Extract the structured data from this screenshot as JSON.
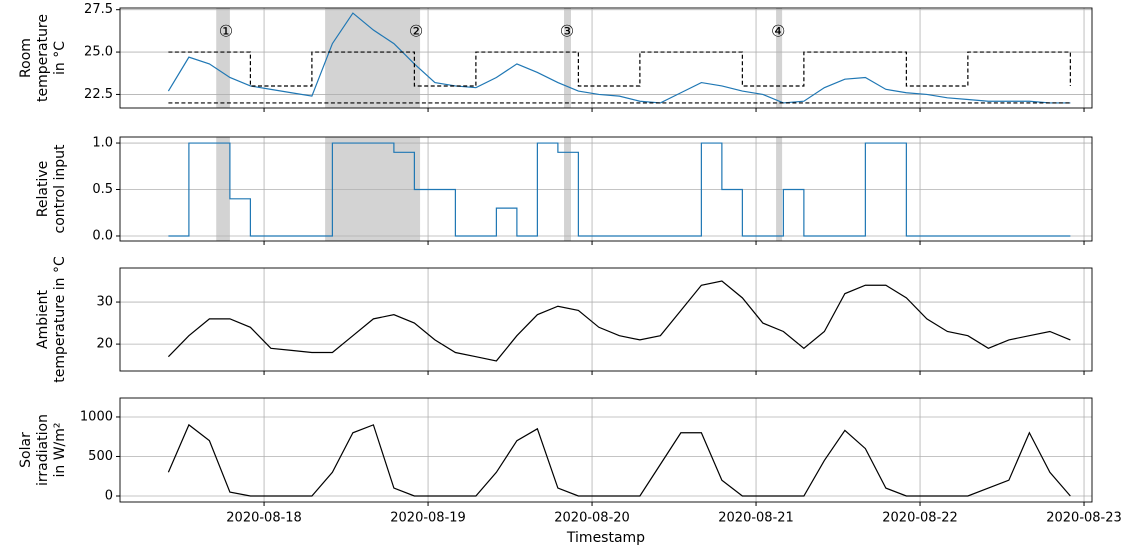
{
  "chart_data": [
    {
      "type": "line",
      "ylabel": [
        "Room",
        "temperature",
        "in °C"
      ],
      "x": [
        "2020-08-17T10:00",
        "2020-08-17T13:00",
        "2020-08-17T16:00",
        "2020-08-17T19:00",
        "2020-08-17T22:00",
        "2020-08-18T01:00",
        "2020-08-18T04:00",
        "2020-08-18T07:00",
        "2020-08-18T10:00",
        "2020-08-18T13:00",
        "2020-08-18T16:00",
        "2020-08-18T19:00",
        "2020-08-18T22:00",
        "2020-08-19T01:00",
        "2020-08-19T04:00",
        "2020-08-19T07:00",
        "2020-08-19T10:00",
        "2020-08-19T13:00",
        "2020-08-19T16:00",
        "2020-08-19T19:00",
        "2020-08-19T22:00",
        "2020-08-20T01:00",
        "2020-08-20T04:00",
        "2020-08-20T07:00",
        "2020-08-20T10:00",
        "2020-08-20T13:00",
        "2020-08-20T16:00",
        "2020-08-20T19:00",
        "2020-08-20T22:00",
        "2020-08-21T01:00",
        "2020-08-21T04:00",
        "2020-08-21T07:00",
        "2020-08-21T10:00",
        "2020-08-21T13:00",
        "2020-08-21T16:00",
        "2020-08-21T19:00",
        "2020-08-21T22:00",
        "2020-08-22T01:00",
        "2020-08-22T04:00",
        "2020-08-22T07:00",
        "2020-08-22T10:00",
        "2020-08-22T13:00",
        "2020-08-22T16:00",
        "2020-08-22T19:00",
        "2020-08-22T22:00"
      ],
      "series": [
        {
          "color": "#1f77b4",
          "values": [
            22.7,
            24.7,
            24.3,
            23.5,
            23.0,
            22.8,
            22.6,
            22.4,
            25.5,
            27.3,
            26.3,
            25.5,
            24.3,
            23.2,
            23.0,
            22.9,
            23.5,
            24.3,
            23.8,
            23.2,
            22.7,
            22.5,
            22.4,
            22.1,
            22.0,
            22.6,
            23.2,
            23.0,
            22.7,
            22.5,
            22.0,
            22.1,
            22.9,
            23.4,
            23.5,
            22.8,
            22.6,
            22.5,
            22.3,
            22.2,
            22.1,
            22.1,
            22.1,
            22.0,
            22.0
          ]
        },
        {
          "color": "#000000",
          "dashed": true,
          "step": true,
          "values": [
            25,
            25,
            25,
            25,
            23,
            23,
            23,
            25,
            25,
            25,
            25,
            25,
            23,
            23,
            23,
            25,
            25,
            25,
            25,
            25,
            23,
            23,
            23,
            25,
            25,
            25,
            25,
            25,
            23,
            23,
            23,
            25,
            25,
            25,
            25,
            25,
            23,
            23,
            23,
            25,
            25,
            25,
            25,
            25,
            23
          ]
        },
        {
          "color": "#000000",
          "dashed": true,
          "step": true,
          "values": [
            22,
            22,
            22,
            22,
            22,
            22,
            22,
            22,
            22,
            22,
            22,
            22,
            22,
            22,
            22,
            22,
            22,
            22,
            22,
            22,
            22,
            22,
            22,
            22,
            22,
            22,
            22,
            22,
            22,
            22,
            22,
            22,
            22,
            22,
            22,
            22,
            22,
            22,
            22,
            22,
            22,
            22,
            22,
            22,
            22
          ]
        }
      ],
      "spans": [
        {
          "x0": "2020-08-17T17:00",
          "x1": "2020-08-17T19:00",
          "label": "①"
        },
        {
          "x0": "2020-08-18T08:56",
          "x1": "2020-08-18T22:50",
          "label": "②"
        },
        {
          "x0": "2020-08-19T19:54",
          "x1": "2020-08-19T20:55",
          "label": "③"
        },
        {
          "x0": "2020-08-21T02:56",
          "x1": "2020-08-21T03:49",
          "label": "④"
        }
      ],
      "xlim": [
        "2020-08-17T02:55",
        "2020-08-23T01:10"
      ],
      "xticks": [
        "2020-08-18",
        "2020-08-19",
        "2020-08-20",
        "2020-08-21",
        "2020-08-22",
        "2020-08-23"
      ],
      "ylim": [
        21.7,
        27.6
      ],
      "yticks": [
        22.5,
        {
          "value": 25,
          "label": "25.0"
        },
        27.5
      ],
      "grid": true
    },
    {
      "type": "line",
      "ylabel": [
        "Relative",
        "control input"
      ],
      "x": [
        "2020-08-17T10:00",
        "2020-08-17T13:00",
        "2020-08-17T16:00",
        "2020-08-17T19:00",
        "2020-08-17T22:00",
        "2020-08-18T01:00",
        "2020-08-18T04:00",
        "2020-08-18T07:00",
        "2020-08-18T10:00",
        "2020-08-18T13:00",
        "2020-08-18T16:00",
        "2020-08-18T19:00",
        "2020-08-18T22:00",
        "2020-08-19T01:00",
        "2020-08-19T04:00",
        "2020-08-19T07:00",
        "2020-08-19T10:00",
        "2020-08-19T13:00",
        "2020-08-19T16:00",
        "2020-08-19T19:00",
        "2020-08-19T22:00",
        "2020-08-20T01:00",
        "2020-08-20T04:00",
        "2020-08-20T07:00",
        "2020-08-20T10:00",
        "2020-08-20T13:00",
        "2020-08-20T16:00",
        "2020-08-20T19:00",
        "2020-08-20T22:00",
        "2020-08-21T01:00",
        "2020-08-21T04:00",
        "2020-08-21T07:00",
        "2020-08-21T10:00",
        "2020-08-21T13:00",
        "2020-08-21T16:00",
        "2020-08-21T19:00",
        "2020-08-21T22:00",
        "2020-08-22T01:00",
        "2020-08-22T04:00",
        "2020-08-22T07:00",
        "2020-08-22T10:00",
        "2020-08-22T13:00",
        "2020-08-22T16:00",
        "2020-08-22T19:00",
        "2020-08-22T22:00"
      ],
      "series": [
        {
          "color": "#1f77b4",
          "step": true,
          "values": [
            0,
            1,
            1,
            0.4,
            0,
            0,
            0,
            0,
            1,
            1,
            1,
            0.9,
            0.5,
            0.5,
            0,
            0,
            0.3,
            0,
            1,
            0.9,
            0,
            0,
            0,
            0,
            0,
            0,
            1,
            0.5,
            0,
            0,
            0.5,
            0,
            0,
            0,
            1,
            1,
            0,
            0,
            0,
            0,
            0,
            0,
            0,
            0,
            0
          ]
        }
      ],
      "spans": [
        {
          "x0": "2020-08-17T17:00",
          "x1": "2020-08-17T19:00"
        },
        {
          "x0": "2020-08-18T08:56",
          "x1": "2020-08-18T22:50"
        },
        {
          "x0": "2020-08-19T19:54",
          "x1": "2020-08-19T20:55"
        },
        {
          "x0": "2020-08-21T02:56",
          "x1": "2020-08-21T03:49"
        }
      ],
      "xlim": [
        "2020-08-17T02:55",
        "2020-08-23T01:10"
      ],
      "xticks": [
        "2020-08-18",
        "2020-08-19",
        "2020-08-20",
        "2020-08-21",
        "2020-08-22",
        "2020-08-23"
      ],
      "ylim": [
        -0.054,
        1.065
      ],
      "yticks": [
        {
          "value": 0,
          "label": "0.0"
        },
        0.5,
        {
          "value": 1,
          "label": "1.0"
        }
      ],
      "grid": true
    },
    {
      "type": "line",
      "ylabel": [
        "Ambient",
        "temperature in °C"
      ],
      "x": [
        "2020-08-17T10:00",
        "2020-08-17T13:00",
        "2020-08-17T16:00",
        "2020-08-17T19:00",
        "2020-08-17T22:00",
        "2020-08-18T01:00",
        "2020-08-18T04:00",
        "2020-08-18T07:00",
        "2020-08-18T10:00",
        "2020-08-18T13:00",
        "2020-08-18T16:00",
        "2020-08-18T19:00",
        "2020-08-18T22:00",
        "2020-08-19T01:00",
        "2020-08-19T04:00",
        "2020-08-19T07:00",
        "2020-08-19T10:00",
        "2020-08-19T13:00",
        "2020-08-19T16:00",
        "2020-08-19T19:00",
        "2020-08-19T22:00",
        "2020-08-20T01:00",
        "2020-08-20T04:00",
        "2020-08-20T07:00",
        "2020-08-20T10:00",
        "2020-08-20T13:00",
        "2020-08-20T16:00",
        "2020-08-20T19:00",
        "2020-08-20T22:00",
        "2020-08-21T01:00",
        "2020-08-21T04:00",
        "2020-08-21T07:00",
        "2020-08-21T10:00",
        "2020-08-21T13:00",
        "2020-08-21T16:00",
        "2020-08-21T19:00",
        "2020-08-21T22:00",
        "2020-08-22T01:00",
        "2020-08-22T04:00",
        "2020-08-22T07:00",
        "2020-08-22T10:00",
        "2020-08-22T13:00",
        "2020-08-22T16:00",
        "2020-08-22T19:00",
        "2020-08-22T22:00"
      ],
      "series": [
        {
          "color": "#000000",
          "values": [
            17,
            22,
            26,
            26,
            24,
            19,
            18.5,
            18,
            18,
            22,
            26,
            27,
            25,
            21,
            18,
            17,
            16,
            22,
            27,
            29,
            28,
            24,
            22,
            21,
            22,
            28,
            34,
            35,
            31,
            25,
            23,
            19,
            23,
            32,
            34,
            34,
            31,
            26,
            23,
            22,
            19,
            21,
            22,
            23,
            21
          ]
        }
      ],
      "xlim": [
        "2020-08-17T02:55",
        "2020-08-23T01:10"
      ],
      "xticks": [
        "2020-08-18",
        "2020-08-19",
        "2020-08-20",
        "2020-08-21",
        "2020-08-22",
        "2020-08-23"
      ],
      "ylim": [
        13.6,
        38.1
      ],
      "yticks": [
        20,
        30
      ],
      "grid": true
    },
    {
      "type": "line",
      "ylabel": [
        "Solar",
        "irradiation",
        "in W/m²"
      ],
      "xlabel": "Timestamp",
      "x": [
        "2020-08-17T10:00",
        "2020-08-17T13:00",
        "2020-08-17T16:00",
        "2020-08-17T19:00",
        "2020-08-17T22:00",
        "2020-08-18T01:00",
        "2020-08-18T04:00",
        "2020-08-18T07:00",
        "2020-08-18T10:00",
        "2020-08-18T13:00",
        "2020-08-18T16:00",
        "2020-08-18T19:00",
        "2020-08-18T22:00",
        "2020-08-19T01:00",
        "2020-08-19T04:00",
        "2020-08-19T07:00",
        "2020-08-19T10:00",
        "2020-08-19T13:00",
        "2020-08-19T16:00",
        "2020-08-19T19:00",
        "2020-08-19T22:00",
        "2020-08-20T01:00",
        "2020-08-20T04:00",
        "2020-08-20T07:00",
        "2020-08-20T10:00",
        "2020-08-20T13:00",
        "2020-08-20T16:00",
        "2020-08-20T19:00",
        "2020-08-20T22:00",
        "2020-08-21T01:00",
        "2020-08-21T04:00",
        "2020-08-21T07:00",
        "2020-08-21T10:00",
        "2020-08-21T13:00",
        "2020-08-21T16:00",
        "2020-08-21T19:00",
        "2020-08-21T22:00",
        "2020-08-22T01:00",
        "2020-08-22T04:00",
        "2020-08-22T07:00",
        "2020-08-22T10:00",
        "2020-08-22T13:00",
        "2020-08-22T16:00",
        "2020-08-22T19:00",
        "2020-08-22T22:00"
      ],
      "series": [
        {
          "color": "#000000",
          "values": [
            300,
            900,
            700,
            50,
            0,
            0,
            0,
            0,
            300,
            800,
            900,
            100,
            0,
            0,
            0,
            0,
            300,
            700,
            850,
            100,
            0,
            0,
            0,
            0,
            400,
            800,
            800,
            200,
            0,
            0,
            0,
            0,
            450,
            830,
            600,
            100,
            0,
            0,
            0,
            0,
            100,
            200,
            800,
            300,
            0
          ]
        }
      ],
      "xlim": [
        "2020-08-17T02:55",
        "2020-08-23T01:10"
      ],
      "xticks": [
        "2020-08-18",
        "2020-08-19",
        "2020-08-20",
        "2020-08-21",
        "2020-08-22",
        "2020-08-23"
      ],
      "ylim": [
        -76,
        1240
      ],
      "yticks": [
        0,
        500,
        1000
      ],
      "grid": true
    }
  ]
}
